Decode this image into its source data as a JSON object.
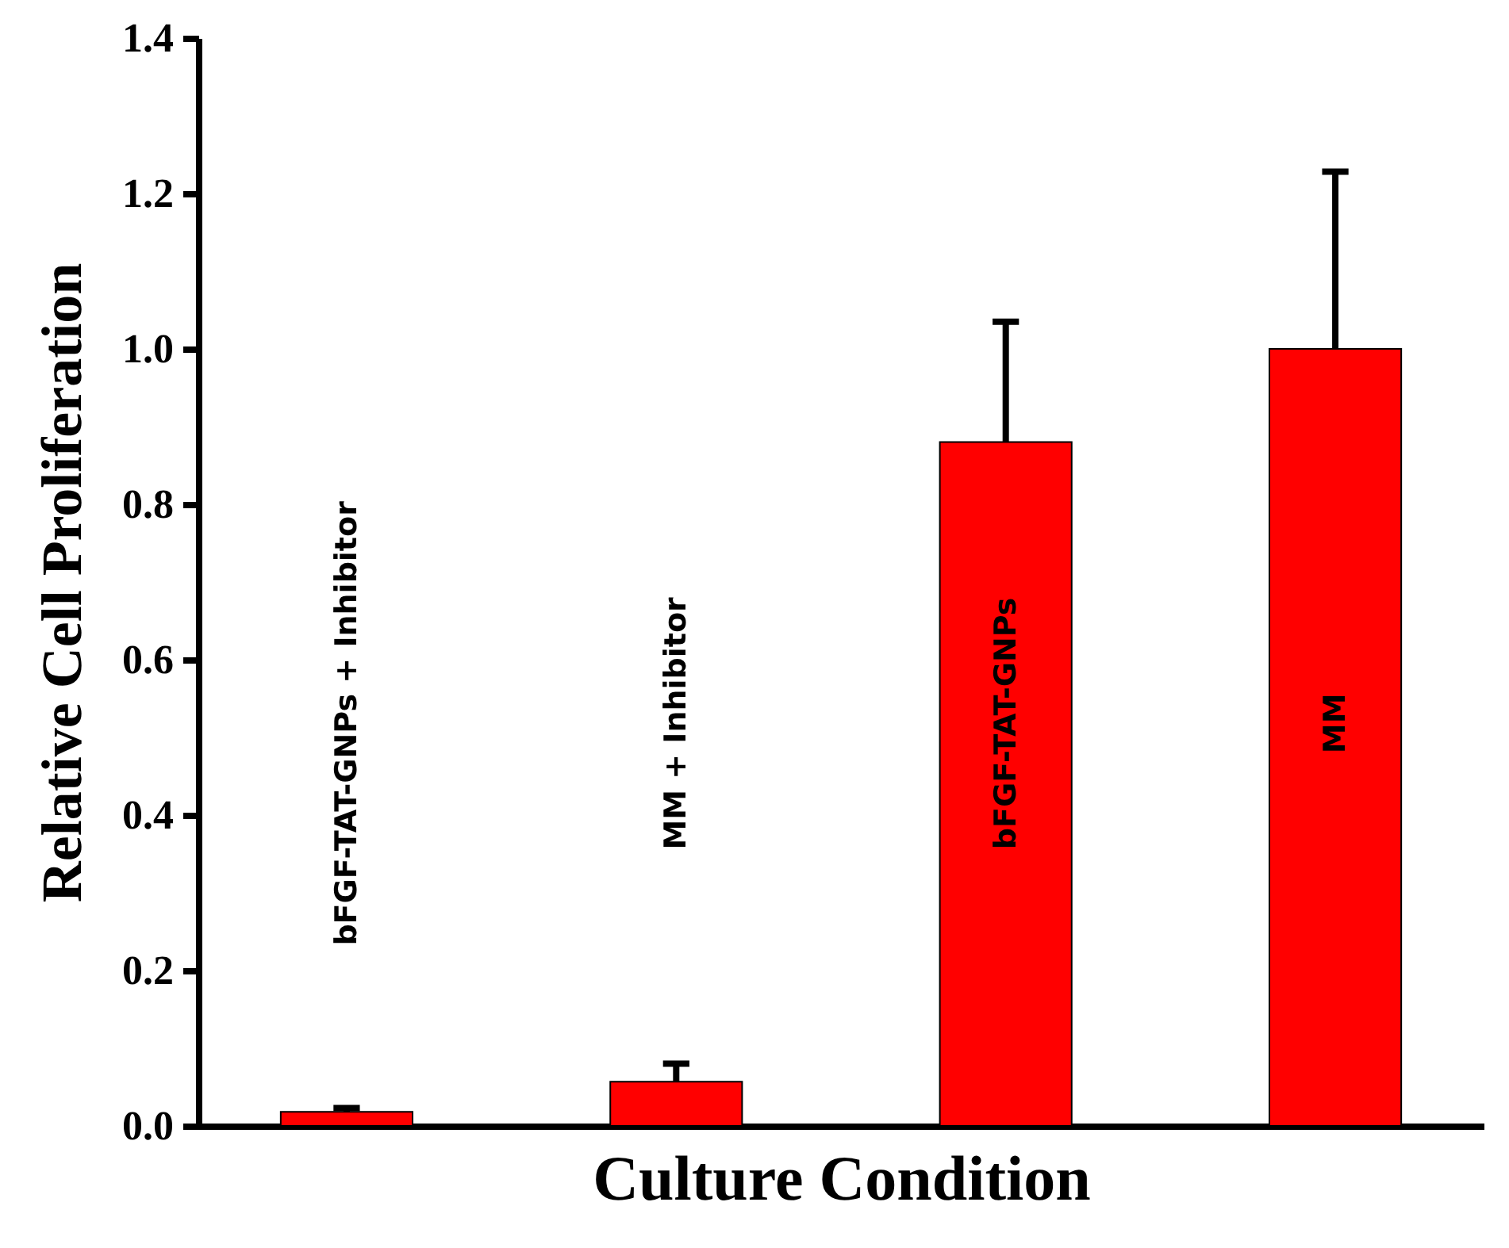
{
  "chart_data": {
    "type": "bar",
    "xlabel": "Culture Condition",
    "ylabel": "Relative Cell Proliferation",
    "categories": [
      "bFGF-TAT-GNPs + Inhibitor",
      "MM + Inhibitor",
      "bFGF-TAT-GNPs",
      "MM"
    ],
    "values": [
      0.018,
      0.057,
      0.88,
      1.0
    ],
    "errors": [
      [
        0.018,
        0.023
      ],
      [
        0.057,
        0.08
      ],
      [
        0.88,
        1.035
      ],
      [
        1.0,
        1.228
      ]
    ],
    "color": "#ff0000",
    "ylim": [
      0,
      1.4
    ],
    "yticks": [
      {
        "value": 0,
        "label": "0.0"
      },
      0.2,
      0.4,
      0.6,
      0.8,
      {
        "value": 1,
        "label": "1.0"
      },
      1.2,
      1.4
    ],
    "tick_labels": "y",
    "grid": false
  }
}
